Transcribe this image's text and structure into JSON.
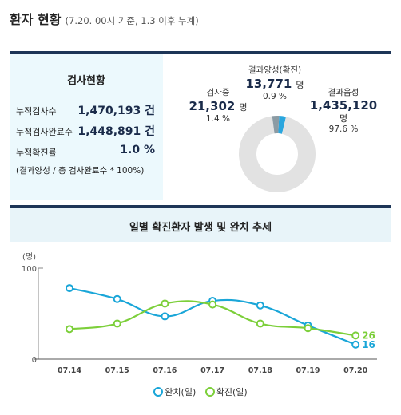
{
  "header": {
    "title": "환자 현황",
    "subtitle": "(7.20. 00시 기준, 1.3 이후 누계)"
  },
  "test_status": {
    "title": "검사현황",
    "stats": [
      {
        "label": "누적검사수",
        "value": "1,470,193 건"
      },
      {
        "label": "누적검사완료수",
        "value": "1,448,891 건"
      },
      {
        "label": "누적확진률",
        "value": "1.0 %"
      }
    ],
    "note": "(결과양성 / 총 검사완료수 * 100%)"
  },
  "donut": {
    "segments": [
      {
        "name": "결과양성(확진)",
        "value": "13,771",
        "unit": "명",
        "percent": "0.9 %",
        "fraction": 0.009,
        "color": "#2aa6de"
      },
      {
        "name": "결과음성",
        "value": "1,435,120",
        "unit": "명",
        "percent": "97.6 %",
        "fraction": 0.976,
        "color": "#e2e2e2"
      },
      {
        "name": "검사중",
        "value": "21,302",
        "unit": "명",
        "percent": "1.4 %",
        "fraction": 0.014,
        "color": "#8b9ba4"
      }
    ]
  },
  "trend_panel": {
    "title": "일별 확진환자 발생 및 완치 추세"
  },
  "chart_data": {
    "type": "line",
    "title": "일별 확진환자 발생 및 완치 추세",
    "unit_label": "(명)",
    "ylim": [
      0,
      100
    ],
    "yticks": [
      "100",
      "0"
    ],
    "categories": [
      "07.14",
      "07.15",
      "07.16",
      "07.17",
      "07.18",
      "07.19",
      "07.20"
    ],
    "series": [
      {
        "name": "완치(일)",
        "color": "#1aa6d8",
        "values": [
          78,
          66,
          47,
          64,
          59,
          37,
          16
        ]
      },
      {
        "name": "확진(일)",
        "color": "#7ccf3a",
        "values": [
          33,
          39,
          61,
          60,
          39,
          34,
          26
        ]
      }
    ],
    "end_labels": [
      "16",
      "26"
    ],
    "legend_position": "bottom"
  }
}
